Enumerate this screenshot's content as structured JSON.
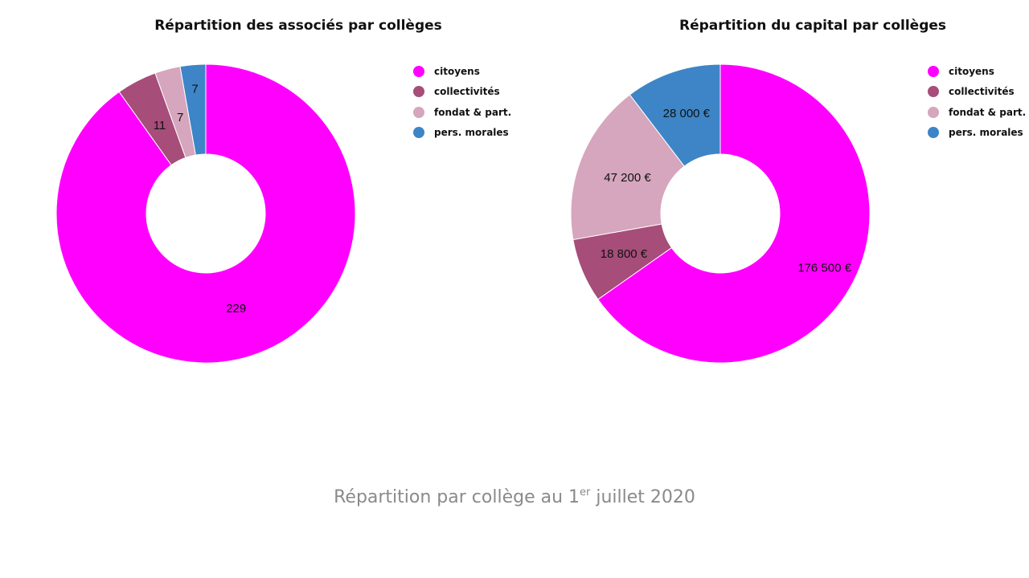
{
  "colors": {
    "citoyens": "#ff00ff",
    "collectivites": "#a64d79",
    "fondat": "#d5a6bd",
    "pers_morales": "#3d85c6"
  },
  "chart_data": [
    {
      "type": "pie",
      "title": "Répartition des associés par collèges",
      "categories": [
        "citoyens",
        "collectivités",
        "fondat & part.",
        "pers. morales"
      ],
      "values": [
        229,
        11,
        7,
        7
      ],
      "labels": [
        "229",
        "11",
        "7",
        "7"
      ],
      "legend": "top-right"
    },
    {
      "type": "pie",
      "title": "Répartition du capital par collèges",
      "categories": [
        "citoyens",
        "collectivités",
        "fondat & part.",
        "pers. morales"
      ],
      "values": [
        176500,
        18800,
        47200,
        28000
      ],
      "labels": [
        "176 500 €",
        "18 800 €",
        "47 200 €",
        "28 000 €"
      ],
      "legend": "top-right"
    }
  ],
  "footer": {
    "prefix": "Répartition par collège au 1",
    "sup": "er",
    "suffix": " juillet 2020"
  }
}
